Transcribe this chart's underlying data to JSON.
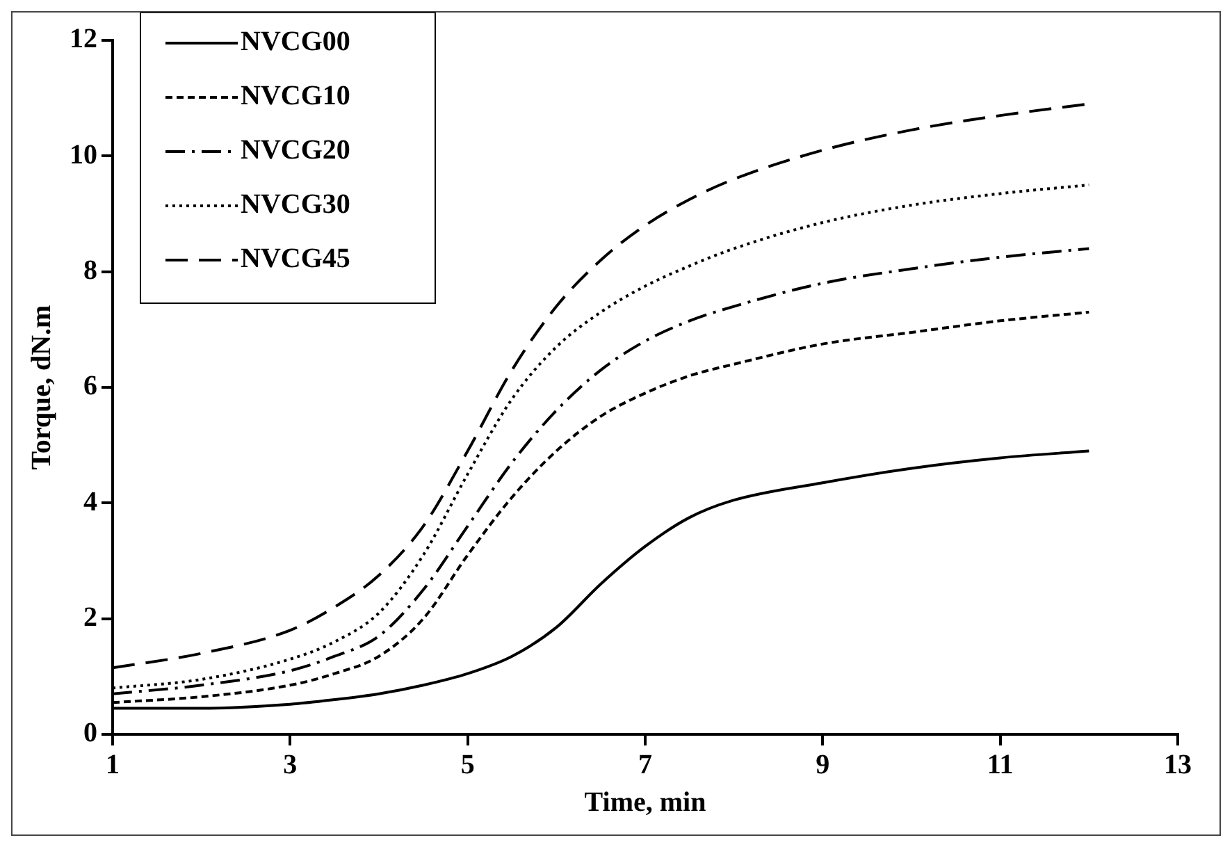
{
  "chart_data": {
    "type": "line",
    "xlabel": "Time, min",
    "ylabel": "Torque, dN.m",
    "xlim": [
      1,
      13
    ],
    "xticks": [
      1,
      3,
      5,
      7,
      9,
      11,
      13
    ],
    "ylim": [
      0,
      12
    ],
    "yticks": [
      0,
      2,
      4,
      6,
      8,
      10,
      12
    ],
    "grid": false,
    "legend": "top left",
    "marker": "none",
    "x": [
      1,
      2,
      3,
      3.5,
      4,
      4.5,
      5,
      5.5,
      6,
      6.5,
      7,
      7.5,
      8,
      9,
      10,
      11,
      12
    ],
    "series": [
      {
        "name": "NVCG00",
        "color": "#000000",
        "line_style": "solid",
        "values": [
          0.45,
          0.45,
          0.52,
          0.6,
          0.7,
          0.85,
          1.05,
          1.35,
          1.85,
          2.6,
          3.25,
          3.75,
          4.05,
          4.35,
          4.6,
          4.78,
          4.9
        ]
      },
      {
        "name": "NVCG10",
        "color": "#000000",
        "line_style": "dashed",
        "values": [
          0.55,
          0.65,
          0.85,
          1.05,
          1.35,
          2.0,
          3.1,
          4.1,
          4.9,
          5.5,
          5.9,
          6.2,
          6.4,
          6.75,
          6.95,
          7.15,
          7.3
        ]
      },
      {
        "name": "NVCG20",
        "color": "#000000",
        "line_style": "dashed",
        "values": [
          0.7,
          0.85,
          1.1,
          1.35,
          1.7,
          2.5,
          3.6,
          4.7,
          5.6,
          6.3,
          6.8,
          7.15,
          7.4,
          7.8,
          8.05,
          8.25,
          8.4
        ]
      },
      {
        "name": "NVCG30",
        "color": "#000000",
        "line_style": "dotted",
        "values": [
          0.8,
          0.95,
          1.3,
          1.6,
          2.1,
          3.1,
          4.5,
          5.8,
          6.7,
          7.3,
          7.75,
          8.1,
          8.4,
          8.85,
          9.15,
          9.35,
          9.5
        ]
      },
      {
        "name": "NVCG45",
        "color": "#000000",
        "line_style": "dashed",
        "values": [
          1.15,
          1.4,
          1.8,
          2.2,
          2.75,
          3.6,
          4.9,
          6.3,
          7.4,
          8.2,
          8.8,
          9.25,
          9.6,
          10.1,
          10.45,
          10.7,
          10.9
        ]
      }
    ]
  }
}
